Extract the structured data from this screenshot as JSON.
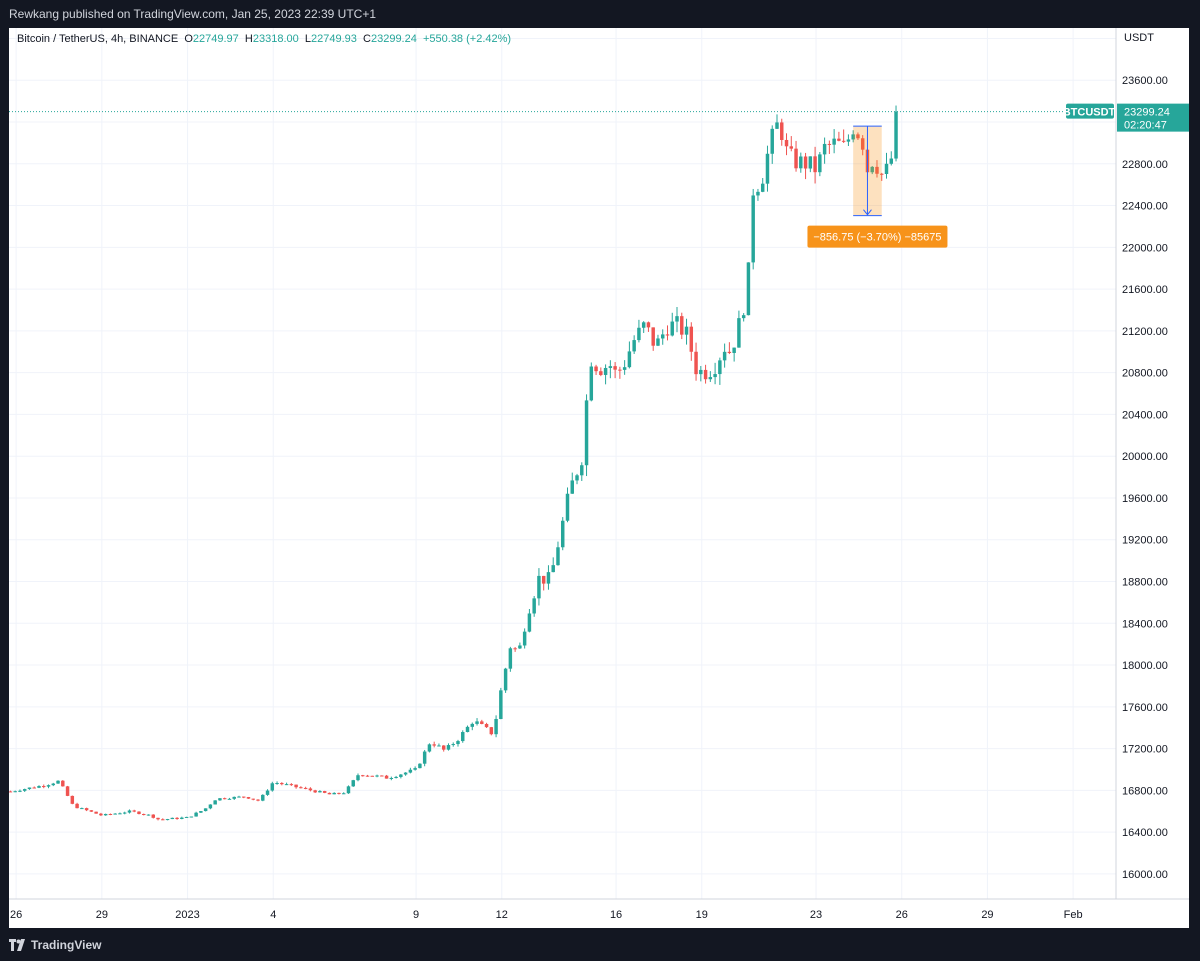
{
  "header": {
    "publish_text": "Rewkang published on TradingView.com, Jan 25, 2023 22:39 UTC+1"
  },
  "legend": {
    "symbol": "Bitcoin / TetherUS, 4h, BINANCE",
    "open_label": "O",
    "open": "22749.97",
    "high_label": "H",
    "high": "23318.00",
    "low_label": "L",
    "low": "22749.93",
    "close_label": "C",
    "close": "23299.24",
    "change": "+550.38 (+2.42%)"
  },
  "price_axis": {
    "unit": "USDT"
  },
  "last_price": {
    "ticker": "BTCUSDT",
    "price": "23299.24",
    "countdown": "02:20:47"
  },
  "measure": {
    "label": "−856.75 (−3.70%) −85675"
  },
  "footer": {
    "brand": "TradingView"
  },
  "colors": {
    "up": "#26a69a",
    "down": "#ef5350",
    "measure": "#f7931a",
    "measure_line": "#2962ff"
  },
  "chart_data": {
    "type": "candlestick",
    "y_label": "USDT",
    "ylim": [
      15760,
      24100
    ],
    "y_ticks": [
      16000,
      16400,
      16800,
      17200,
      17600,
      18000,
      18400,
      18800,
      19200,
      19600,
      20000,
      20400,
      20800,
      21200,
      21600,
      22000,
      22400,
      22800,
      23200,
      23600,
      24000
    ],
    "x_ticks": [
      {
        "label": "26",
        "day": 0
      },
      {
        "label": "29",
        "day": 3
      },
      {
        "label": "2023",
        "day": 6
      },
      {
        "label": "4",
        "day": 9
      },
      {
        "label": "9",
        "day": 14
      },
      {
        "label": "12",
        "day": 17
      },
      {
        "label": "16",
        "day": 21
      },
      {
        "label": "19",
        "day": 24
      },
      {
        "label": "23",
        "day": 28
      },
      {
        "label": "26",
        "day": 31
      },
      {
        "label": "29",
        "day": 34
      },
      {
        "label": "Feb",
        "day": 37
      }
    ],
    "x_range_days": [
      -0.25,
      38.5
    ],
    "anchors": [
      [
        -0.2,
        16790
      ],
      [
        1,
        16850
      ],
      [
        1.5,
        16890
      ],
      [
        2,
        16650
      ],
      [
        3,
        16560
      ],
      [
        4,
        16600
      ],
      [
        4.7,
        16560
      ],
      [
        5,
        16520
      ],
      [
        6,
        16540
      ],
      [
        6.6,
        16620
      ],
      [
        7,
        16720
      ],
      [
        8,
        16740
      ],
      [
        8.5,
        16700
      ],
      [
        9,
        16880
      ],
      [
        10,
        16820
      ],
      [
        11,
        16760
      ],
      [
        11.5,
        16780
      ],
      [
        12,
        16960
      ],
      [
        13,
        16920
      ],
      [
        14,
        17000
      ],
      [
        14.5,
        17270
      ],
      [
        15,
        17180
      ],
      [
        15.5,
        17300
      ],
      [
        16,
        17470
      ],
      [
        16.7,
        17340
      ],
      [
        17,
        17800
      ],
      [
        17.3,
        18180
      ],
      [
        17.6,
        18130
      ],
      [
        17.9,
        18500
      ],
      [
        18.3,
        18830
      ],
      [
        18.7,
        18820
      ],
      [
        19,
        19200
      ],
      [
        19.4,
        19680
      ],
      [
        19.8,
        20000
      ],
      [
        20.1,
        20950
      ],
      [
        20.4,
        20850
      ],
      [
        20.8,
        20870
      ],
      [
        21,
        20780
      ],
      [
        21.3,
        20900
      ],
      [
        21.6,
        21100
      ],
      [
        22,
        21250
      ],
      [
        22.4,
        21050
      ],
      [
        22.8,
        21250
      ],
      [
        23.2,
        21250
      ],
      [
        23.5,
        21150
      ],
      [
        23.8,
        20850
      ],
      [
        24,
        20800
      ],
      [
        24.4,
        20850
      ],
      [
        24.8,
        21050
      ],
      [
        25,
        21000
      ],
      [
        25.3,
        21250
      ],
      [
        25.6,
        21600
      ],
      [
        25.8,
        22550
      ],
      [
        26.1,
        22650
      ],
      [
        26.4,
        23000
      ],
      [
        26.7,
        23210
      ],
      [
        27,
        22880
      ],
      [
        27.3,
        22820
      ],
      [
        27.7,
        22800
      ],
      [
        28,
        22750
      ],
      [
        28.3,
        22950
      ],
      [
        28.7,
        23000
      ],
      [
        29,
        22950
      ],
      [
        29.3,
        23150
      ],
      [
        29.6,
        23050
      ],
      [
        29.8,
        22750
      ],
      [
        30,
        22850
      ],
      [
        30.3,
        22700
      ],
      [
        30.6,
        22760
      ],
      [
        30.8,
        23299
      ]
    ],
    "measure_range": {
      "from_day": 29.3,
      "to_day": 30.3,
      "high": 23160,
      "low": 22303,
      "change": -856.75,
      "change_pct": -3.7,
      "ticks": -85675
    },
    "last_price": 23299.24
  }
}
